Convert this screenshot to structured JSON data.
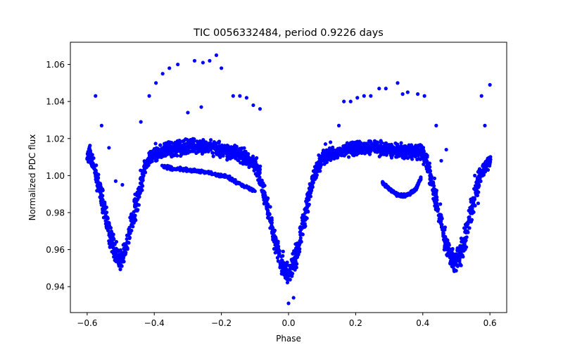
{
  "chart_data": {
    "type": "scatter",
    "title": "TIC 0056332484, period 0.9226 days",
    "xlabel": "Phase",
    "ylabel": "Normalized PDC flux",
    "xlim": [
      -0.65,
      0.65
    ],
    "ylim": [
      0.926,
      1.072
    ],
    "xticks": [
      -0.6,
      -0.4,
      -0.2,
      0.0,
      0.2,
      0.4,
      0.6
    ],
    "xtick_labels": [
      "−0.6",
      "−0.4",
      "−0.2",
      "0.0",
      "0.2",
      "0.4",
      "0.6"
    ],
    "yticks": [
      0.94,
      0.96,
      0.98,
      1.0,
      1.02,
      1.04,
      1.06
    ],
    "ytick_labels": [
      "0.94",
      "0.96",
      "0.98",
      "1.00",
      "1.02",
      "1.04",
      "1.06"
    ],
    "grid": false,
    "marker_color": "#0000ff",
    "curve_points": [
      [
        -0.6,
        1.01
      ],
      [
        -0.59,
        1.012
      ],
      [
        -0.58,
        1.006
      ],
      [
        -0.57,
        0.998
      ],
      [
        -0.56,
        0.99
      ],
      [
        -0.55,
        0.982
      ],
      [
        -0.54,
        0.974
      ],
      [
        -0.53,
        0.966
      ],
      [
        -0.52,
        0.96
      ],
      [
        -0.51,
        0.956
      ],
      [
        -0.5,
        0.955
      ],
      [
        -0.49,
        0.958
      ],
      [
        -0.48,
        0.964
      ],
      [
        -0.47,
        0.972
      ],
      [
        -0.46,
        0.98
      ],
      [
        -0.45,
        0.988
      ],
      [
        -0.44,
        0.996
      ],
      [
        -0.43,
        1.003
      ],
      [
        -0.42,
        1.008
      ],
      [
        -0.4,
        1.012
      ],
      [
        -0.38,
        1.013
      ],
      [
        -0.35,
        1.014
      ],
      [
        -0.32,
        1.015
      ],
      [
        -0.3,
        1.016
      ],
      [
        -0.28,
        1.016
      ],
      [
        -0.25,
        1.016
      ],
      [
        -0.22,
        1.015
      ],
      [
        -0.2,
        1.014
      ],
      [
        -0.18,
        1.013
      ],
      [
        -0.16,
        1.012
      ],
      [
        -0.14,
        1.011
      ],
      [
        -0.12,
        1.009
      ],
      [
        -0.1,
        1.006
      ],
      [
        -0.09,
        1.002
      ],
      [
        -0.08,
        0.996
      ],
      [
        -0.07,
        0.988
      ],
      [
        -0.06,
        0.98
      ],
      [
        -0.05,
        0.972
      ],
      [
        -0.04,
        0.965
      ],
      [
        -0.03,
        0.958
      ],
      [
        -0.02,
        0.953
      ],
      [
        -0.01,
        0.949
      ],
      [
        0.0,
        0.948
      ],
      [
        0.01,
        0.95
      ],
      [
        0.02,
        0.955
      ],
      [
        0.03,
        0.962
      ],
      [
        0.04,
        0.97
      ],
      [
        0.05,
        0.979
      ],
      [
        0.06,
        0.988
      ],
      [
        0.07,
        0.996
      ],
      [
        0.08,
        1.002
      ],
      [
        0.09,
        1.006
      ],
      [
        0.1,
        1.009
      ],
      [
        0.12,
        1.011
      ],
      [
        0.14,
        1.012
      ],
      [
        0.16,
        1.013
      ],
      [
        0.18,
        1.014
      ],
      [
        0.2,
        1.015
      ],
      [
        0.22,
        1.015
      ],
      [
        0.25,
        1.015
      ],
      [
        0.28,
        1.015
      ],
      [
        0.3,
        1.014
      ],
      [
        0.32,
        1.014
      ],
      [
        0.35,
        1.013
      ],
      [
        0.38,
        1.013
      ],
      [
        0.4,
        1.012
      ],
      [
        0.41,
        1.008
      ],
      [
        0.42,
        1.002
      ],
      [
        0.43,
        0.994
      ],
      [
        0.44,
        0.986
      ],
      [
        0.45,
        0.978
      ],
      [
        0.46,
        0.97
      ],
      [
        0.47,
        0.963
      ],
      [
        0.48,
        0.958
      ],
      [
        0.49,
        0.955
      ],
      [
        0.5,
        0.954
      ],
      [
        0.51,
        0.957
      ],
      [
        0.52,
        0.963
      ],
      [
        0.53,
        0.97
      ],
      [
        0.54,
        0.978
      ],
      [
        0.55,
        0.986
      ],
      [
        0.56,
        0.993
      ],
      [
        0.57,
        0.999
      ],
      [
        0.58,
        1.003
      ],
      [
        0.59,
        1.006
      ],
      [
        0.6,
        1.008
      ]
    ],
    "lower_branch_points": [
      [
        -0.38,
        1.005
      ],
      [
        -0.35,
        1.004
      ],
      [
        -0.3,
        1.003
      ],
      [
        -0.25,
        1.002
      ],
      [
        -0.2,
        1.0
      ],
      [
        -0.18,
        0.999
      ],
      [
        -0.16,
        0.997
      ],
      [
        -0.14,
        0.995
      ],
      [
        -0.12,
        0.993
      ],
      [
        -0.1,
        0.992
      ],
      [
        0.28,
        0.996
      ],
      [
        0.3,
        0.993
      ],
      [
        0.32,
        0.99
      ],
      [
        0.34,
        0.989
      ],
      [
        0.36,
        0.99
      ],
      [
        0.38,
        0.993
      ],
      [
        0.395,
        0.999
      ]
    ],
    "outlier_points": [
      [
        -0.575,
        1.043
      ],
      [
        -0.557,
        1.027
      ],
      [
        -0.535,
        1.015
      ],
      [
        -0.515,
        0.997
      ],
      [
        -0.495,
        0.995
      ],
      [
        -0.44,
        1.029
      ],
      [
        -0.415,
        1.043
      ],
      [
        -0.395,
        1.05
      ],
      [
        -0.375,
        1.055
      ],
      [
        -0.355,
        1.058
      ],
      [
        -0.33,
        1.06
      ],
      [
        -0.28,
        1.062
      ],
      [
        -0.255,
        1.061
      ],
      [
        -0.235,
        1.062
      ],
      [
        -0.215,
        1.065
      ],
      [
        -0.2,
        1.058
      ],
      [
        -0.165,
        1.043
      ],
      [
        -0.145,
        1.043
      ],
      [
        -0.125,
        1.042
      ],
      [
        -0.105,
        1.038
      ],
      [
        -0.085,
        1.036
      ],
      [
        -0.3,
        1.034
      ],
      [
        -0.26,
        1.037
      ],
      [
        -0.045,
        0.97
      ],
      [
        0.0,
        0.931
      ],
      [
        0.015,
        0.934
      ],
      [
        0.045,
        0.978
      ],
      [
        0.09,
        1.011
      ],
      [
        0.11,
        1.017
      ],
      [
        0.125,
        1.018
      ],
      [
        0.15,
        1.027
      ],
      [
        0.165,
        1.04
      ],
      [
        0.185,
        1.04
      ],
      [
        0.205,
        1.042
      ],
      [
        0.225,
        1.043
      ],
      [
        0.245,
        1.043
      ],
      [
        0.27,
        1.047
      ],
      [
        0.29,
        1.047
      ],
      [
        0.325,
        1.05
      ],
      [
        0.34,
        1.044
      ],
      [
        0.355,
        1.045
      ],
      [
        0.385,
        1.044
      ],
      [
        0.405,
        1.043
      ],
      [
        0.44,
        1.027
      ],
      [
        0.455,
        1.008
      ],
      [
        0.47,
        1.014
      ],
      [
        0.525,
        0.964
      ],
      [
        0.565,
        0.985
      ],
      [
        0.585,
        1.027
      ],
      [
        0.6,
        1.049
      ],
      [
        0.575,
        1.043
      ],
      [
        0.555,
        1.0
      ]
    ],
    "band_half_width": 0.0055,
    "dip_half_width": 0.0085,
    "random_seed": 56332484
  }
}
